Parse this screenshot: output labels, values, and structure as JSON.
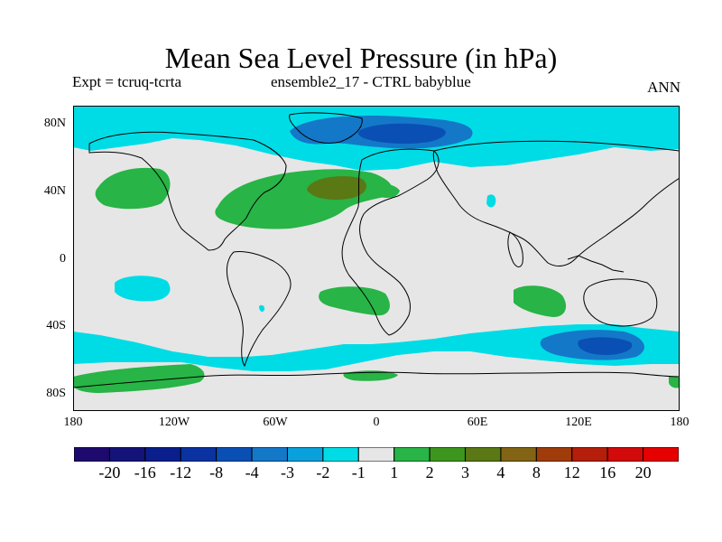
{
  "title": "Mean Sea Level Pressure (in hPa)",
  "experiment": "Expt = tcruq-tcrta",
  "ensemble": "ensemble2_17 - CTRL babyblue",
  "season": "ANN",
  "lat_ticks": [
    "80N",
    "40N",
    "0",
    "40S",
    "80S"
  ],
  "lon_ticks": [
    "180",
    "120W",
    "60W",
    "0",
    "60E",
    "120E",
    "180"
  ],
  "colorbar": {
    "labels": [
      "-20",
      "-16",
      "-12",
      "-8",
      "-4",
      "-3",
      "-2",
      "-1",
      "1",
      "2",
      "3",
      "4",
      "8",
      "12",
      "16",
      "20"
    ],
    "colors": [
      "#1e0a6e",
      "#141478",
      "#0a1e8c",
      "#0a32a0",
      "#0a50b4",
      "#1478c8",
      "#0aa0dc",
      "#00dce6",
      "#e6e6e6",
      "#28b446",
      "#3c961e",
      "#5a7814",
      "#826414",
      "#a03c0a",
      "#b41e0a",
      "#d20a0a",
      "#e60000"
    ]
  },
  "regions": {
    "neutral_color": "#e6e6e6",
    "positive_color": "#28b446",
    "strong_positive_color": "#5a7814",
    "negative_color": "#00dce6",
    "strong_negative_color": "#1478c8",
    "deep_negative_color": "#0a50b4"
  }
}
